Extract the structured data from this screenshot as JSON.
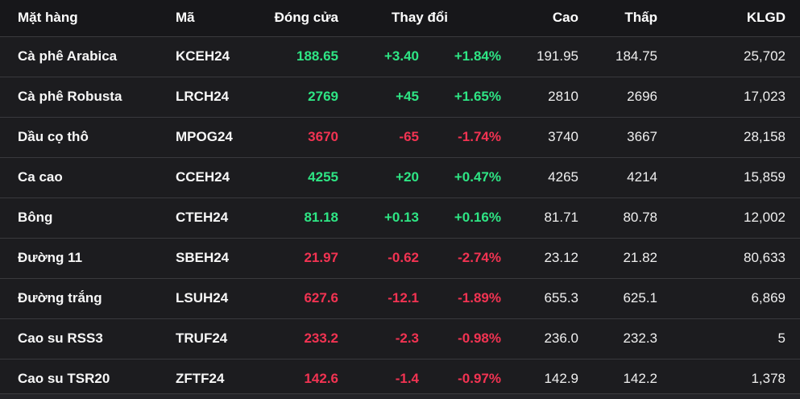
{
  "table": {
    "columns": [
      {
        "key": "name",
        "label": "Mặt hàng"
      },
      {
        "key": "code",
        "label": "Mã"
      },
      {
        "key": "close",
        "label": "Đóng cửa"
      },
      {
        "key": "change",
        "label": "Thay đổi"
      },
      {
        "key": "high",
        "label": "Cao"
      },
      {
        "key": "low",
        "label": "Thấp"
      },
      {
        "key": "volume",
        "label": "KLGD"
      }
    ],
    "rows": [
      {
        "name": "Cà phê Arabica",
        "code": "KCEH24",
        "close": "188.65",
        "change": "+3.40",
        "change_pct": "+1.84%",
        "high": "191.95",
        "low": "184.75",
        "volume": "25,702",
        "direction": "up"
      },
      {
        "name": "Cà phê Robusta",
        "code": "LRCH24",
        "close": "2769",
        "change": "+45",
        "change_pct": "+1.65%",
        "high": "2810",
        "low": "2696",
        "volume": "17,023",
        "direction": "up"
      },
      {
        "name": "Dầu cọ thô",
        "code": "MPOG24",
        "close": "3670",
        "change": "-65",
        "change_pct": "-1.74%",
        "high": "3740",
        "low": "3667",
        "volume": "28,158",
        "direction": "down"
      },
      {
        "name": "Ca cao",
        "code": "CCEH24",
        "close": "4255",
        "change": "+20",
        "change_pct": "+0.47%",
        "high": "4265",
        "low": "4214",
        "volume": "15,859",
        "direction": "up"
      },
      {
        "name": "Bông",
        "code": "CTEH24",
        "close": "81.18",
        "change": "+0.13",
        "change_pct": "+0.16%",
        "high": "81.71",
        "low": "80.78",
        "volume": "12,002",
        "direction": "up"
      },
      {
        "name": "Đường 11",
        "code": "SBEH24",
        "close": "21.97",
        "change": "-0.62",
        "change_pct": "-2.74%",
        "high": "23.12",
        "low": "21.82",
        "volume": "80,633",
        "direction": "down"
      },
      {
        "name": "Đường trắng",
        "code": "LSUH24",
        "close": "627.6",
        "change": "-12.1",
        "change_pct": "-1.89%",
        "high": "655.3",
        "low": "625.1",
        "volume": "6,869",
        "direction": "down"
      },
      {
        "name": "Cao su RSS3",
        "code": "TRUF24",
        "close": "233.2",
        "change": "-2.3",
        "change_pct": "-0.98%",
        "high": "236.0",
        "low": "232.3",
        "volume": "5",
        "direction": "down"
      },
      {
        "name": "Cao su TSR20",
        "code": "ZFTF24",
        "close": "142.6",
        "change": "-1.4",
        "change_pct": "-0.97%",
        "high": "142.9",
        "low": "142.2",
        "volume": "1,378",
        "direction": "down"
      }
    ],
    "colors": {
      "up": "#2ee584",
      "down": "#f23352",
      "header_bg": "#17171a",
      "row_bg": "#1c1c1f",
      "separator": "#39393d"
    }
  }
}
